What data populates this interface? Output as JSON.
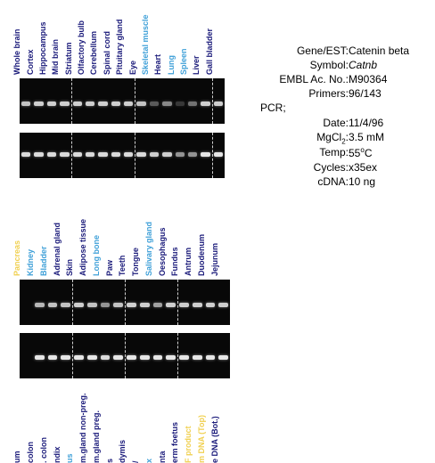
{
  "panel1": {
    "lanes": [
      {
        "label": "Whole brain",
        "color": "#1a1a7a",
        "band1": 0.8,
        "band2": 0.9
      },
      {
        "label": "Cortex",
        "color": "#1a1a7a",
        "band1": 0.85,
        "band2": 0.9
      },
      {
        "label": "Hippocampus",
        "color": "#1a1a7a",
        "band1": 0.85,
        "band2": 0.9
      },
      {
        "label": "Mid brain",
        "color": "#1a1a7a",
        "band1": 0.85,
        "band2": 0.9
      },
      {
        "label": "Striatum",
        "color": "#1a1a7a",
        "band1": 0.85,
        "band2": 0.9
      },
      {
        "label": "Olfactory bulb",
        "color": "#1a1a7a",
        "band1": 0.85,
        "band2": 0.9
      },
      {
        "label": "Cerebellum",
        "color": "#1a1a7a",
        "band1": 0.85,
        "band2": 0.9
      },
      {
        "label": "Spinal cord",
        "color": "#1a1a7a",
        "band1": 0.85,
        "band2": 0.9
      },
      {
        "label": "Pituitary gland",
        "color": "#1a1a7a",
        "band1": 0.85,
        "band2": 0.9
      },
      {
        "label": "Eye",
        "color": "#1a1a7a",
        "band1": 0.8,
        "band2": 0.9
      },
      {
        "label": "Skeletal muscle",
        "color": "#3fa0d8",
        "band1": 0.35,
        "band2": 0.85
      },
      {
        "label": "Heart",
        "color": "#1a1a7a",
        "band1": 0.55,
        "band2": 0.85
      },
      {
        "label": "Lung",
        "color": "#3fa0d8",
        "band1": 0.2,
        "band2": 0.6
      },
      {
        "label": "Spleen",
        "color": "#3fa0d8",
        "band1": 0.45,
        "band2": 0.6
      },
      {
        "label": "Liver",
        "color": "#1a1a7a",
        "band1": 0.85,
        "band2": 0.95
      },
      {
        "label": "Gall bladder",
        "color": "#1a1a7a",
        "band1": 0.85,
        "band2": 0.95
      }
    ],
    "dividers_after": [
      3,
      8,
      14
    ]
  },
  "panel2": {
    "lanes": [
      {
        "label": "Pancreas",
        "color": "#f0d050",
        "band1": 0.0,
        "band2": 0.0
      },
      {
        "label": "Kidney",
        "color": "#3fa0d8",
        "band1": 0.75,
        "band2": 0.95
      },
      {
        "label": "Bladder",
        "color": "#3fa0d8",
        "band1": 0.8,
        "band2": 0.95
      },
      {
        "label": "Adrenal gland",
        "color": "#1a1a7a",
        "band1": 0.8,
        "band2": 0.95
      },
      {
        "label": "Skin",
        "color": "#1a1a7a",
        "band1": 0.85,
        "band2": 0.95
      },
      {
        "label": "Adipose tissue",
        "color": "#1a1a7a",
        "band1": 0.8,
        "band2": 0.95
      },
      {
        "label": "Long bone",
        "color": "#3fa0d8",
        "band1": 0.6,
        "band2": 0.9
      },
      {
        "label": "Paw",
        "color": "#1a1a7a",
        "band1": 0.8,
        "band2": 0.95
      },
      {
        "label": "Teeth",
        "color": "#1a1a7a",
        "band1": 0.85,
        "band2": 0.95
      },
      {
        "label": "Tongue",
        "color": "#1a1a7a",
        "band1": 0.85,
        "band2": 0.95
      },
      {
        "label": "Salivary gland",
        "color": "#3fa0d8",
        "band1": 0.65,
        "band2": 0.95
      },
      {
        "label": "Oesophagus",
        "color": "#1a1a7a",
        "band1": 0.85,
        "band2": 0.95
      },
      {
        "label": "Fundus",
        "color": "#1a1a7a",
        "band1": 0.85,
        "band2": 0.95
      },
      {
        "label": "Antrum",
        "color": "#1a1a7a",
        "band1": 0.85,
        "band2": 0.95
      },
      {
        "label": "Duodenum",
        "color": "#1a1a7a",
        "band1": 0.85,
        "band2": 0.95
      },
      {
        "label": "Jejunum",
        "color": "#1a1a7a",
        "band1": 0.85,
        "band2": 0.95
      }
    ],
    "dividers_after": [
      3,
      7,
      11
    ]
  },
  "panel3": {
    "lanes": [
      {
        "label": "um",
        "color": "#1a1a7a"
      },
      {
        "label": "colon",
        "color": "#1a1a7a"
      },
      {
        "label": ". colon",
        "color": "#1a1a7a"
      },
      {
        "label": "ndix",
        "color": "#1a1a7a"
      },
      {
        "label": "us",
        "color": "#3fa0d8"
      },
      {
        "label": "m.gland non-preg.",
        "color": "#1a1a7a"
      },
      {
        "label": "m.gland preg.",
        "color": "#1a1a7a"
      },
      {
        "label": "s",
        "color": "#1a1a7a"
      },
      {
        "label": "dymis",
        "color": "#1a1a7a"
      },
      {
        "label": "/",
        "color": "#1a1a7a"
      },
      {
        "label": "x",
        "color": "#3fa0d8"
      },
      {
        "label": "nta",
        "color": "#1a1a7a"
      },
      {
        "label": "erm foetus",
        "color": "#1a1a7a"
      },
      {
        "label": "F product",
        "color": "#f0d050"
      },
      {
        "label": "m DNA (Top)",
        "color": "#f0d050"
      },
      {
        "label": "e DNA (Bot.)",
        "color": "#1a1a7a"
      }
    ]
  },
  "info": {
    "gene_key": "Gene/EST:",
    "gene_val": "Catenin beta",
    "symbol_key": "Symbol:",
    "symbol_val": "Catnb",
    "embl_key": "EMBL Ac. No.:",
    "embl_val": "M90364",
    "primers_key": "Primers:",
    "primers_val": "96/143",
    "pcr_key": "PCR;",
    "date_key": "Date:",
    "date_val": "11/4/96",
    "mgcl_key_a": "MgCl",
    "mgcl_key_sub": "2",
    "mgcl_key_b": ":",
    "mgcl_val": "3.5 mM",
    "temp_key": "Temp:",
    "temp_val_a": "55",
    "temp_val_sup": "o",
    "temp_val_b": "C",
    "cycles_key": "Cycles:",
    "cycles_val": "x35ex",
    "cdna_key": "cDNA:",
    "cdna_val": "10 ng"
  }
}
